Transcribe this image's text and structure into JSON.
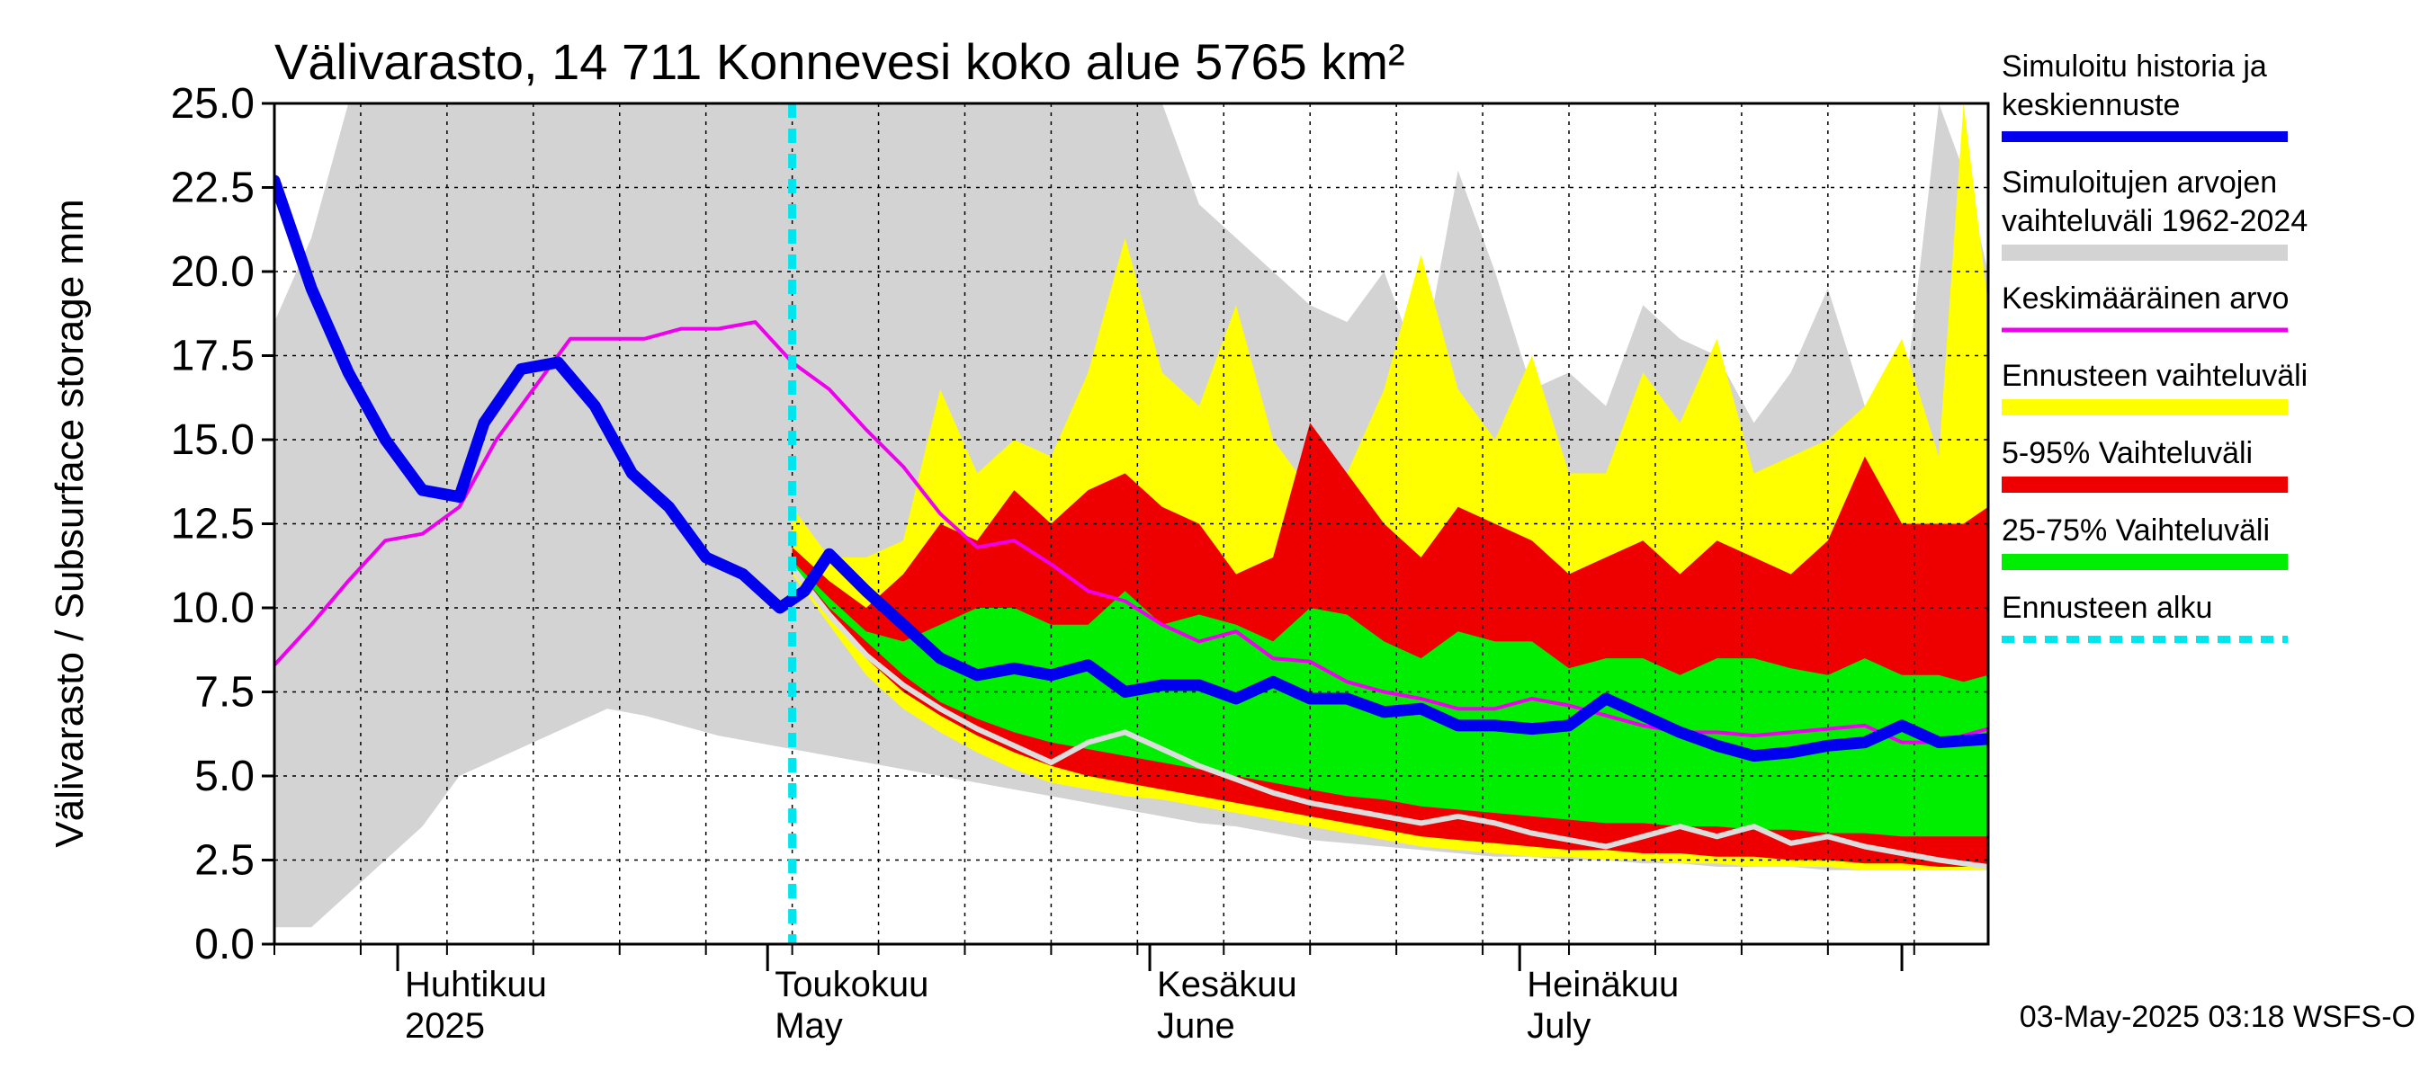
{
  "chart_data": {
    "type": "area",
    "title": "Välivarasto, 14 711 Konnevesi koko alue 5765 km²",
    "ylabel": "Välivarasto / Subsurface storage  mm",
    "ylim": [
      0,
      25
    ],
    "y_ticks": [
      "0.0",
      "2.5",
      "5.0",
      "7.5",
      "10.0",
      "12.5",
      "15.0",
      "17.5",
      "20.0",
      "22.5",
      "25.0"
    ],
    "x_start": "2025-03-22",
    "x_end": "2025-08-08",
    "forecast_start": "2025-05-03",
    "month_labels": [
      {
        "date": "2025-04-01",
        "fi": "Huhtikuu",
        "en": "2025"
      },
      {
        "date": "2025-05-01",
        "fi": "Toukokuu",
        "en": "May"
      },
      {
        "date": "2025-06-01",
        "fi": "Kesäkuu",
        "en": "June"
      },
      {
        "date": "2025-07-01",
        "fi": "Heinäkuu",
        "en": "July"
      }
    ],
    "grid": true,
    "legend_position": "right",
    "legend": [
      {
        "label_lines": [
          "Simuloitu historia ja",
          "keskiennuste"
        ],
        "color": "#0000ee",
        "style": "thick-line"
      },
      {
        "label_lines": [
          "Simuloitujen arvojen",
          "vaihteluväli 1962-2024"
        ],
        "color": "#d3d3d3",
        "style": "band"
      },
      {
        "label_lines": [
          "Keskimääräinen arvo"
        ],
        "color": "#ee00ee",
        "style": "line"
      },
      {
        "label_lines": [
          "Ennusteen vaihteluväli"
        ],
        "color": "#ffff00",
        "style": "band"
      },
      {
        "label_lines": [
          "5-95% Vaihteluväli"
        ],
        "color": "#ee0000",
        "style": "band"
      },
      {
        "label_lines": [
          "25-75% Vaihteluväli"
        ],
        "color": "#00ee00",
        "style": "band"
      },
      {
        "label_lines": [
          "Ennusteen alku"
        ],
        "color": "#00e5ee",
        "style": "dashed"
      }
    ],
    "series": {
      "historical_range": {
        "x": [
          "2025-03-22",
          "2025-03-25",
          "2025-03-28",
          "2025-03-31",
          "2025-04-03",
          "2025-04-06",
          "2025-04-09",
          "2025-04-12",
          "2025-04-15",
          "2025-04-18",
          "2025-04-21",
          "2025-04-24",
          "2025-04-27",
          "2025-04-30",
          "2025-05-03",
          "2025-05-06",
          "2025-05-09",
          "2025-05-12",
          "2025-05-15",
          "2025-05-18",
          "2025-05-21",
          "2025-05-24",
          "2025-05-27",
          "2025-05-30",
          "2025-06-02",
          "2025-06-05",
          "2025-06-08",
          "2025-06-11",
          "2025-06-14",
          "2025-06-17",
          "2025-06-20",
          "2025-06-23",
          "2025-06-26",
          "2025-06-29",
          "2025-07-02",
          "2025-07-05",
          "2025-07-08",
          "2025-07-11",
          "2025-07-14",
          "2025-07-17",
          "2025-07-20",
          "2025-07-23",
          "2025-07-26",
          "2025-07-29",
          "2025-08-01",
          "2025-08-04",
          "2025-08-06",
          "2025-08-08"
        ],
        "upper": [
          18.5,
          21.0,
          25.0,
          25.0,
          25.0,
          25.0,
          25.0,
          25.0,
          25.0,
          25.0,
          25.0,
          25.0,
          25.0,
          25.0,
          25.0,
          25.0,
          25.0,
          25.0,
          25.0,
          25.0,
          25.0,
          25.0,
          25.0,
          25.0,
          25.0,
          22.0,
          21.0,
          20.0,
          19.0,
          18.5,
          20.0,
          17.0,
          23.0,
          20.0,
          16.5,
          17.0,
          16.0,
          19.0,
          18.0,
          17.5,
          15.5,
          17.0,
          19.5,
          16.0,
          15.5,
          25.0,
          23.0,
          20.0
        ],
        "lower": [
          0.5,
          0.5,
          1.5,
          2.5,
          3.5,
          5.0,
          5.5,
          6.0,
          6.5,
          7.0,
          6.8,
          6.5,
          6.2,
          6.0,
          5.8,
          5.6,
          5.4,
          5.2,
          5.0,
          4.8,
          4.6,
          4.4,
          4.2,
          4.0,
          3.8,
          3.6,
          3.5,
          3.3,
          3.1,
          3.0,
          2.9,
          2.8,
          2.7,
          2.6,
          2.6,
          2.5,
          2.5,
          2.4,
          2.4,
          2.3,
          2.3,
          2.3,
          2.2,
          2.2,
          2.2,
          2.2,
          2.2,
          2.2
        ]
      },
      "forecast_range": {
        "x": [
          "2025-05-03",
          "2025-05-06",
          "2025-05-09",
          "2025-05-12",
          "2025-05-15",
          "2025-05-18",
          "2025-05-21",
          "2025-05-24",
          "2025-05-27",
          "2025-05-30",
          "2025-06-02",
          "2025-06-05",
          "2025-06-08",
          "2025-06-11",
          "2025-06-14",
          "2025-06-17",
          "2025-06-20",
          "2025-06-23",
          "2025-06-26",
          "2025-06-29",
          "2025-07-02",
          "2025-07-05",
          "2025-07-08",
          "2025-07-11",
          "2025-07-14",
          "2025-07-17",
          "2025-07-20",
          "2025-07-23",
          "2025-07-26",
          "2025-07-29",
          "2025-08-01",
          "2025-08-04",
          "2025-08-06",
          "2025-08-08"
        ],
        "upper": [
          13.0,
          11.5,
          11.5,
          12.0,
          16.5,
          14.0,
          15.0,
          14.5,
          17.0,
          21.0,
          17.0,
          16.0,
          19.0,
          15.0,
          13.5,
          14.0,
          16.5,
          20.5,
          16.5,
          15.0,
          17.5,
          14.0,
          14.0,
          17.0,
          15.5,
          18.0,
          14.0,
          14.5,
          15.0,
          16.0,
          18.0,
          14.5,
          25.0,
          19.0
        ],
        "lower": [
          11.0,
          9.5,
          8.0,
          7.0,
          6.3,
          5.7,
          5.2,
          4.8,
          4.6,
          4.4,
          4.3,
          4.1,
          3.9,
          3.7,
          3.5,
          3.3,
          3.1,
          2.9,
          2.8,
          2.7,
          2.6,
          2.6,
          2.5,
          2.5,
          2.4,
          2.4,
          2.3,
          2.3,
          2.3,
          2.2,
          2.2,
          2.2,
          2.2,
          2.2
        ]
      },
      "p5_95": {
        "x": [
          "2025-05-03",
          "2025-05-06",
          "2025-05-09",
          "2025-05-12",
          "2025-05-15",
          "2025-05-18",
          "2025-05-21",
          "2025-05-24",
          "2025-05-27",
          "2025-05-30",
          "2025-06-02",
          "2025-06-05",
          "2025-06-08",
          "2025-06-11",
          "2025-06-14",
          "2025-06-17",
          "2025-06-20",
          "2025-06-23",
          "2025-06-26",
          "2025-06-29",
          "2025-07-02",
          "2025-07-05",
          "2025-07-08",
          "2025-07-11",
          "2025-07-14",
          "2025-07-17",
          "2025-07-20",
          "2025-07-23",
          "2025-07-26",
          "2025-07-29",
          "2025-08-01",
          "2025-08-04",
          "2025-08-06",
          "2025-08-08"
        ],
        "upper": [
          11.8,
          10.8,
          10.0,
          11.0,
          12.5,
          12.0,
          13.5,
          12.5,
          13.5,
          14.0,
          13.0,
          12.5,
          11.0,
          11.5,
          15.5,
          14.0,
          12.5,
          11.5,
          13.0,
          12.5,
          12.0,
          11.0,
          11.5,
          12.0,
          11.0,
          12.0,
          11.5,
          11.0,
          12.0,
          14.5,
          12.5,
          12.5,
          12.5,
          13.0
        ],
        "lower": [
          11.2,
          9.8,
          8.5,
          7.5,
          6.8,
          6.2,
          5.7,
          5.3,
          5.0,
          4.8,
          4.6,
          4.4,
          4.2,
          4.0,
          3.8,
          3.6,
          3.4,
          3.2,
          3.1,
          3.0,
          2.9,
          2.8,
          2.8,
          2.7,
          2.7,
          2.6,
          2.6,
          2.5,
          2.5,
          2.4,
          2.4,
          2.3,
          2.3,
          2.3
        ]
      },
      "p25_75": {
        "x": [
          "2025-05-03",
          "2025-05-06",
          "2025-05-09",
          "2025-05-12",
          "2025-05-15",
          "2025-05-18",
          "2025-05-21",
          "2025-05-24",
          "2025-05-27",
          "2025-05-30",
          "2025-06-02",
          "2025-06-05",
          "2025-06-08",
          "2025-06-11",
          "2025-06-14",
          "2025-06-17",
          "2025-06-20",
          "2025-06-23",
          "2025-06-26",
          "2025-06-29",
          "2025-07-02",
          "2025-07-05",
          "2025-07-08",
          "2025-07-11",
          "2025-07-14",
          "2025-07-17",
          "2025-07-20",
          "2025-07-23",
          "2025-07-26",
          "2025-07-29",
          "2025-08-01",
          "2025-08-04",
          "2025-08-06",
          "2025-08-08"
        ],
        "upper": [
          11.4,
          10.3,
          9.3,
          9.0,
          9.5,
          10.0,
          10.0,
          9.5,
          9.5,
          10.5,
          9.5,
          9.8,
          9.5,
          9.0,
          10.0,
          9.8,
          9.0,
          8.5,
          9.3,
          9.0,
          9.0,
          8.2,
          8.5,
          8.5,
          8.0,
          8.5,
          8.5,
          8.2,
          8.0,
          8.5,
          8.0,
          8.0,
          7.8,
          8.0
        ],
        "lower": [
          11.3,
          10.0,
          9.0,
          8.0,
          7.2,
          6.7,
          6.3,
          6.0,
          5.8,
          5.6,
          5.4,
          5.2,
          5.0,
          4.8,
          4.6,
          4.4,
          4.3,
          4.1,
          4.0,
          3.9,
          3.8,
          3.7,
          3.6,
          3.6,
          3.5,
          3.5,
          3.4,
          3.4,
          3.3,
          3.3,
          3.2,
          3.2,
          3.2,
          3.2
        ]
      },
      "simulated": {
        "x": [
          "2025-03-22",
          "2025-03-25",
          "2025-03-28",
          "2025-03-31",
          "2025-04-03",
          "2025-04-06",
          "2025-04-08",
          "2025-04-11",
          "2025-04-14",
          "2025-04-17",
          "2025-04-20",
          "2025-04-23",
          "2025-04-26",
          "2025-04-29",
          "2025-05-02",
          "2025-05-04",
          "2025-05-06",
          "2025-05-09",
          "2025-05-12",
          "2025-05-15",
          "2025-05-18",
          "2025-05-21",
          "2025-05-24",
          "2025-05-27",
          "2025-05-30",
          "2025-06-02",
          "2025-06-05",
          "2025-06-08",
          "2025-06-11",
          "2025-06-14",
          "2025-06-17",
          "2025-06-20",
          "2025-06-23",
          "2025-06-26",
          "2025-06-29",
          "2025-07-02",
          "2025-07-05",
          "2025-07-08",
          "2025-07-11",
          "2025-07-14",
          "2025-07-17",
          "2025-07-20",
          "2025-07-23",
          "2025-07-26",
          "2025-07-29",
          "2025-08-01",
          "2025-08-04",
          "2025-08-08"
        ],
        "values": [
          22.7,
          19.5,
          17.0,
          15.0,
          13.5,
          13.3,
          15.5,
          17.1,
          17.3,
          16.0,
          14.0,
          13.0,
          11.5,
          11.0,
          10.0,
          10.5,
          11.6,
          10.5,
          9.5,
          8.5,
          8.0,
          8.2,
          8.0,
          8.3,
          7.5,
          7.7,
          7.7,
          7.3,
          7.8,
          7.3,
          7.3,
          6.9,
          7.0,
          6.5,
          6.5,
          6.4,
          6.5,
          7.3,
          6.8,
          6.3,
          5.9,
          5.6,
          5.7,
          5.9,
          6.0,
          6.5,
          6.0,
          6.1
        ]
      },
      "mean": {
        "x": [
          "2025-03-22",
          "2025-03-25",
          "2025-03-28",
          "2025-03-31",
          "2025-04-03",
          "2025-04-06",
          "2025-04-09",
          "2025-04-12",
          "2025-04-15",
          "2025-04-18",
          "2025-04-21",
          "2025-04-24",
          "2025-04-27",
          "2025-04-30",
          "2025-05-03",
          "2025-05-06",
          "2025-05-09",
          "2025-05-12",
          "2025-05-15",
          "2025-05-18",
          "2025-05-21",
          "2025-05-24",
          "2025-05-27",
          "2025-05-30",
          "2025-06-02",
          "2025-06-05",
          "2025-06-08",
          "2025-06-11",
          "2025-06-14",
          "2025-06-17",
          "2025-06-20",
          "2025-06-23",
          "2025-06-26",
          "2025-06-29",
          "2025-07-02",
          "2025-07-05",
          "2025-07-08",
          "2025-07-11",
          "2025-07-14",
          "2025-07-17",
          "2025-07-20",
          "2025-07-23",
          "2025-07-26",
          "2025-07-29",
          "2025-08-01",
          "2025-08-04",
          "2025-08-08"
        ],
        "values": [
          8.3,
          9.5,
          10.8,
          12.0,
          12.2,
          13.0,
          15.0,
          16.5,
          18.0,
          18.0,
          18.0,
          18.3,
          18.3,
          18.5,
          17.3,
          16.5,
          15.3,
          14.2,
          12.8,
          11.8,
          12.0,
          11.3,
          10.5,
          10.2,
          9.5,
          9.0,
          9.3,
          8.5,
          8.4,
          7.8,
          7.5,
          7.3,
          7.0,
          7.0,
          7.3,
          7.1,
          6.8,
          6.5,
          6.3,
          6.3,
          6.2,
          6.3,
          6.4,
          6.5,
          6.0,
          6.0,
          6.4
        ]
      },
      "lower_trace": {
        "x": [
          "2025-05-03",
          "2025-05-06",
          "2025-05-09",
          "2025-05-12",
          "2025-05-15",
          "2025-05-18",
          "2025-05-21",
          "2025-05-24",
          "2025-05-27",
          "2025-05-30",
          "2025-06-02",
          "2025-06-05",
          "2025-06-08",
          "2025-06-11",
          "2025-06-14",
          "2025-06-17",
          "2025-06-20",
          "2025-06-23",
          "2025-06-26",
          "2025-06-29",
          "2025-07-02",
          "2025-07-05",
          "2025-07-08",
          "2025-07-11",
          "2025-07-14",
          "2025-07-17",
          "2025-07-20",
          "2025-07-23",
          "2025-07-26",
          "2025-07-29",
          "2025-08-01",
          "2025-08-04",
          "2025-08-08"
        ],
        "values": [
          11.2,
          9.8,
          8.6,
          7.7,
          7.0,
          6.4,
          5.9,
          5.4,
          6.0,
          6.3,
          5.8,
          5.3,
          4.9,
          4.5,
          4.2,
          4.0,
          3.8,
          3.6,
          3.8,
          3.6,
          3.3,
          3.1,
          2.9,
          3.2,
          3.5,
          3.2,
          3.5,
          3.0,
          3.2,
          2.9,
          2.7,
          2.5,
          2.3
        ]
      }
    }
  },
  "footer_text": "03-May-2025 03:18 WSFS-O"
}
